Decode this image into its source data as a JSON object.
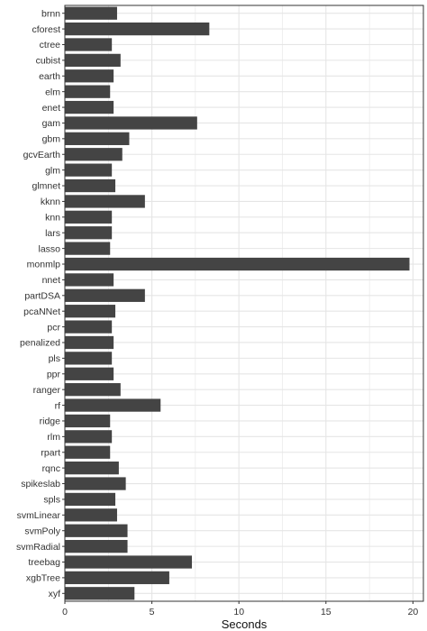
{
  "chart_data": {
    "type": "bar",
    "orientation": "horizontal",
    "xlabel": "Seconds",
    "ylabel": "",
    "xlim": [
      0,
      20.6
    ],
    "x_ticks": [
      0,
      5,
      10,
      15,
      20
    ],
    "x_tick_labels": [
      "0",
      "5",
      "10",
      "15",
      "20"
    ],
    "grid": true,
    "bar_color": "#444444",
    "panel_border_color": "#333333",
    "grid_color": "#e5e5e5",
    "categories": [
      "brnn",
      "cforest",
      "ctree",
      "cubist",
      "earth",
      "elm",
      "enet",
      "gam",
      "gbm",
      "gcvEarth",
      "glm",
      "glmnet",
      "kknn",
      "knn",
      "lars",
      "lasso",
      "monmlp",
      "nnet",
      "partDSA",
      "pcaNNet",
      "pcr",
      "penalized",
      "pls",
      "ppr",
      "ranger",
      "rf",
      "ridge",
      "rlm",
      "rpart",
      "rqnc",
      "spikeslab",
      "spls",
      "svmLinear",
      "svmPoly",
      "svmRadial",
      "treebag",
      "xgbTree",
      "xyf"
    ],
    "values": [
      3.0,
      8.3,
      2.7,
      3.2,
      2.8,
      2.6,
      2.8,
      7.6,
      3.7,
      3.3,
      2.7,
      2.9,
      4.6,
      2.7,
      2.7,
      2.6,
      19.8,
      2.8,
      4.6,
      2.9,
      2.7,
      2.8,
      2.7,
      2.8,
      3.2,
      5.5,
      2.6,
      2.7,
      2.6,
      3.1,
      3.5,
      2.9,
      3.0,
      3.6,
      3.6,
      7.3,
      6.0,
      4.0
    ]
  }
}
